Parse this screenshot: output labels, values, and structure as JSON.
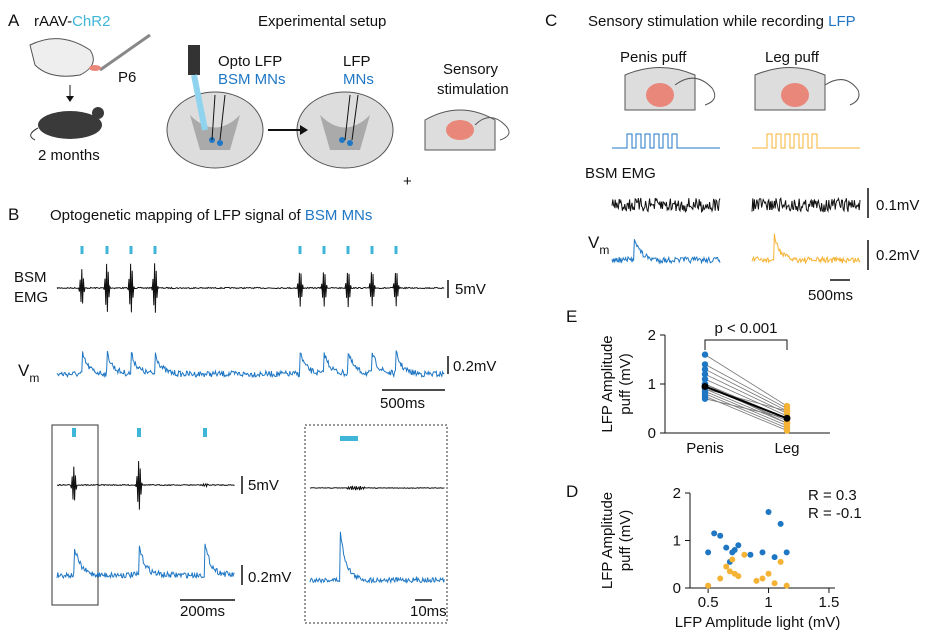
{
  "panel_a": {
    "label": "A",
    "vector": [
      "rAAV-",
      "ChR2"
    ],
    "age": "P6",
    "time": "2 months",
    "setup_title": "Experimental setup",
    "opto": [
      "Opto LFP",
      "BSM MNs"
    ],
    "lfp": [
      "LFP",
      "MNs"
    ],
    "sensory": [
      "Sensory",
      "stimulation"
    ],
    "plus": "+"
  },
  "panel_b": {
    "label": "B",
    "title": [
      "Optogenetic mapping of LFP signal of ",
      "BSM MNs"
    ],
    "emg_label": [
      "BSM",
      "EMG"
    ],
    "vm": [
      "V",
      "m"
    ],
    "scales": [
      "5mV",
      "0.2mV",
      "500ms",
      "5mV",
      "0.2mV",
      "200ms",
      "10ms"
    ]
  },
  "panel_c": {
    "label": "C",
    "title": [
      "Sensory stimulation while recording ",
      "LFP"
    ],
    "conditions": [
      "Penis puff",
      "Leg puff"
    ],
    "emg_label": "BSM EMG",
    "vm": [
      "V",
      "m"
    ],
    "scales": [
      "0.1mV",
      "0.2mV",
      "500ms"
    ]
  },
  "chart_data": [
    {
      "label": "E",
      "type": "paired",
      "categories": [
        "Penis",
        "Leg"
      ],
      "colors": [
        "#1f77c4",
        "#f5b335"
      ],
      "pairs": [
        [
          1.6,
          0.55
        ],
        [
          1.4,
          0.5
        ],
        [
          1.3,
          0.45
        ],
        [
          1.2,
          0.4
        ],
        [
          1.1,
          0.35
        ],
        [
          1.0,
          0.3
        ],
        [
          0.95,
          0.25
        ],
        [
          0.9,
          0.2
        ],
        [
          0.85,
          0.15
        ],
        [
          0.8,
          0.1
        ],
        [
          0.75,
          0.05
        ],
        [
          0.7,
          0.3
        ],
        [
          0.9,
          0.45
        ],
        [
          1.0,
          0.2
        ]
      ],
      "means": [
        0.95,
        0.3
      ],
      "mean_color": "#000000",
      "ylabel": [
        "LFP Amplitude",
        "puff (mV)"
      ],
      "ylim": [
        0,
        2
      ],
      "yticks": [
        0,
        1,
        2
      ],
      "annotation": "p < 0.001"
    },
    {
      "label": "D",
      "type": "scatter",
      "series": [
        {
          "name": "R = 0.3",
          "color": "#1f77c4",
          "x": [
            0.5,
            0.55,
            0.65,
            0.7,
            0.72,
            0.75,
            0.6,
            0.68,
            1.0,
            1.1,
            1.15,
            0.95,
            1.05,
            0.85
          ],
          "y": [
            0.75,
            1.15,
            0.85,
            0.75,
            0.8,
            0.9,
            1.1,
            0.55,
            1.6,
            1.35,
            0.75,
            0.75,
            0.65,
            0.7
          ]
        },
        {
          "name": "R = -0.1",
          "color": "#f5b335",
          "x": [
            0.5,
            0.6,
            0.65,
            0.7,
            0.72,
            0.75,
            0.8,
            0.9,
            0.95,
            1.0,
            1.05,
            1.1,
            1.15,
            0.68
          ],
          "y": [
            0.05,
            0.2,
            0.45,
            0.6,
            0.3,
            0.25,
            0.7,
            0.15,
            0.2,
            0.3,
            0.1,
            0.55,
            0.05,
            0.35
          ]
        }
      ],
      "xlim": [
        0.35,
        1.55
      ],
      "ylim": [
        0,
        2
      ],
      "xticks": [
        0.5,
        1,
        1.5
      ],
      "yticks": [
        0,
        1,
        2
      ],
      "xlabel": "LFP Amplitude light (mV)",
      "ylabel": [
        "LFP Amplitude",
        "puff (mV)"
      ]
    }
  ]
}
